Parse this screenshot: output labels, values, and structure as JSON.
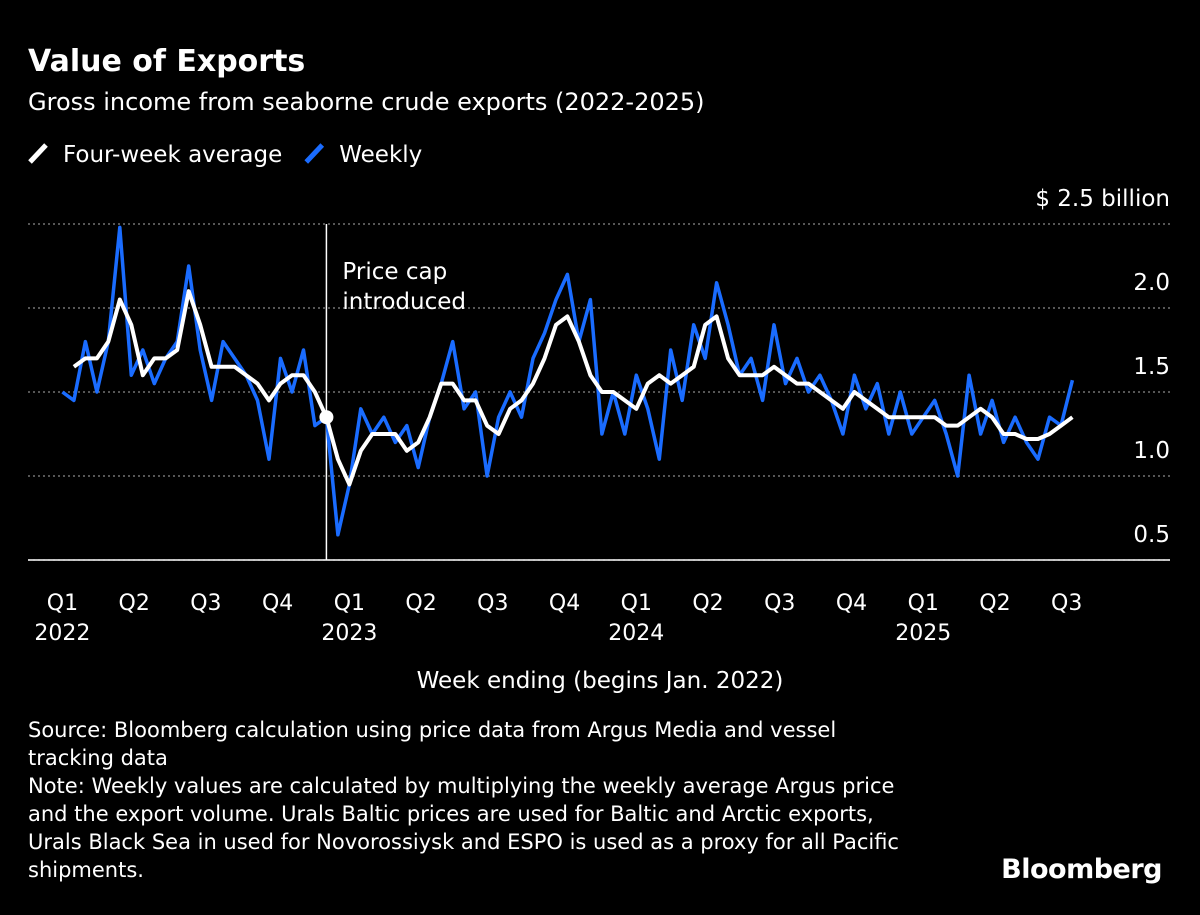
{
  "chart_data": {
    "type": "line",
    "title": "Value of Exports",
    "subtitle": "Gross income from seaborne crude exports (2022-2025)",
    "x_label": "Week ending (begins Jan. 2022)",
    "x": [
      2022,
      2022.04,
      2022.08,
      2022.12,
      2022.16,
      2022.2,
      2022.24,
      2022.28,
      2022.32,
      2022.36,
      2022.4,
      2022.44,
      2022.48,
      2022.52,
      2022.56,
      2022.6,
      2022.64,
      2022.68,
      2022.72,
      2022.76,
      2022.8,
      2022.84,
      2022.88,
      2022.92,
      2022.96,
      2023,
      2023.04,
      2023.08,
      2023.12,
      2023.16,
      2023.2,
      2023.24,
      2023.28,
      2023.32,
      2023.36,
      2023.4,
      2023.44,
      2023.48,
      2023.52,
      2023.56,
      2023.6,
      2023.64,
      2023.68,
      2023.72,
      2023.76,
      2023.8,
      2023.84,
      2023.88,
      2023.92,
      2023.96,
      2024,
      2024.04,
      2024.08,
      2024.12,
      2024.16,
      2024.2,
      2024.24,
      2024.28,
      2024.32,
      2024.36,
      2024.4,
      2024.44,
      2024.48,
      2024.52,
      2024.56,
      2024.6,
      2024.64,
      2024.68,
      2024.72,
      2024.76,
      2024.8,
      2024.84,
      2024.88,
      2024.92,
      2024.96,
      2025,
      2025.04,
      2025.08,
      2025.12,
      2025.16,
      2025.2,
      2025.24,
      2025.28,
      2025.32,
      2025.36,
      2025.4,
      2025.44,
      2025.48,
      2025.52
    ],
    "series": [
      {
        "name": "Four-week average",
        "color": "#ffffff",
        "values": [
          null,
          1.65,
          1.7,
          1.7,
          1.8,
          2.05,
          1.9,
          1.6,
          1.7,
          1.7,
          1.75,
          2.1,
          1.9,
          1.65,
          1.65,
          1.65,
          1.6,
          1.55,
          1.45,
          1.55,
          1.6,
          1.6,
          1.5,
          1.35,
          1.1,
          0.95,
          1.15,
          1.25,
          1.25,
          1.25,
          1.15,
          1.2,
          1.35,
          1.55,
          1.55,
          1.45,
          1.45,
          1.3,
          1.25,
          1.4,
          1.45,
          1.55,
          1.7,
          1.9,
          1.95,
          1.8,
          1.6,
          1.5,
          1.5,
          1.45,
          1.4,
          1.55,
          1.6,
          1.55,
          1.6,
          1.65,
          1.9,
          1.95,
          1.7,
          1.6,
          1.6,
          1.6,
          1.65,
          1.6,
          1.55,
          1.55,
          1.5,
          1.45,
          1.4,
          1.5,
          1.45,
          1.4,
          1.35,
          1.35,
          1.35,
          1.35,
          1.35,
          1.3,
          1.3,
          1.35,
          1.4,
          1.35,
          1.25,
          1.25,
          1.22,
          1.22,
          1.25,
          1.3,
          1.35
        ]
      },
      {
        "name": "Weekly",
        "color": "#1a6cff",
        "values": [
          1.5,
          1.45,
          1.8,
          1.5,
          1.8,
          2.48,
          1.6,
          1.75,
          1.55,
          1.7,
          1.8,
          2.25,
          1.75,
          1.45,
          1.8,
          1.7,
          1.6,
          1.45,
          1.1,
          1.7,
          1.5,
          1.75,
          1.3,
          1.35,
          0.65,
          0.95,
          1.4,
          1.25,
          1.35,
          1.2,
          1.3,
          1.05,
          1.35,
          1.55,
          1.8,
          1.4,
          1.5,
          1.0,
          1.35,
          1.5,
          1.35,
          1.7,
          1.85,
          2.05,
          2.2,
          1.8,
          2.05,
          1.25,
          1.5,
          1.25,
          1.6,
          1.4,
          1.1,
          1.75,
          1.45,
          1.9,
          1.7,
          2.15,
          1.9,
          1.6,
          1.7,
          1.45,
          1.9,
          1.55,
          1.7,
          1.5,
          1.6,
          1.45,
          1.25,
          1.6,
          1.4,
          1.55,
          1.25,
          1.5,
          1.25,
          1.35,
          1.45,
          1.25,
          1.0,
          1.6,
          1.25,
          1.45,
          1.2,
          1.35,
          1.2,
          1.1,
          1.35,
          1.3,
          1.57
        ]
      }
    ],
    "xlim": [
      2021.88,
      2025.86
    ],
    "xticks": [
      {
        "value": 2022,
        "label": "Q1"
      },
      {
        "value": 2022.25,
        "label": "Q2"
      },
      {
        "value": 2022.5,
        "label": "Q3"
      },
      {
        "value": 2022.75,
        "label": "Q4"
      },
      {
        "value": 2023,
        "label": "Q1"
      },
      {
        "value": 2023.25,
        "label": "Q2"
      },
      {
        "value": 2023.5,
        "label": "Q3"
      },
      {
        "value": 2023.75,
        "label": "Q4"
      },
      {
        "value": 2024,
        "label": "Q1"
      },
      {
        "value": 2024.25,
        "label": "Q2"
      },
      {
        "value": 2024.5,
        "label": "Q3"
      },
      {
        "value": 2024.75,
        "label": "Q4"
      },
      {
        "value": 2025,
        "label": "Q1"
      },
      {
        "value": 2025.25,
        "label": "Q2"
      },
      {
        "value": 2025.5,
        "label": "Q3"
      }
    ],
    "year_labels": [
      2022,
      2023,
      2024,
      2025
    ],
    "ylim": [
      0.5,
      2.5
    ],
    "yticks": [
      0.5,
      {
        "value": 1,
        "label": "1.0"
      },
      1.5,
      {
        "value": 2,
        "label": "2.0"
      },
      {
        "value": 2.5,
        "label": "$ 2.5 billion"
      }
    ],
    "grid": true,
    "annotation": {
      "x": 2022.92,
      "lines": [
        "Price cap",
        "introduced"
      ]
    },
    "source": "Source: Bloomberg calculation using price data from Argus Media and vessel tracking data",
    "note": "Note: Weekly values are calculated by multiplying the weekly average Argus price and the export volume. Urals Baltic prices are used for Baltic and Arctic exports, Urals Black Sea in used for Novorossiysk and ESPO is used as a proxy for all Pacific shipments.",
    "brand": "Bloomberg"
  }
}
